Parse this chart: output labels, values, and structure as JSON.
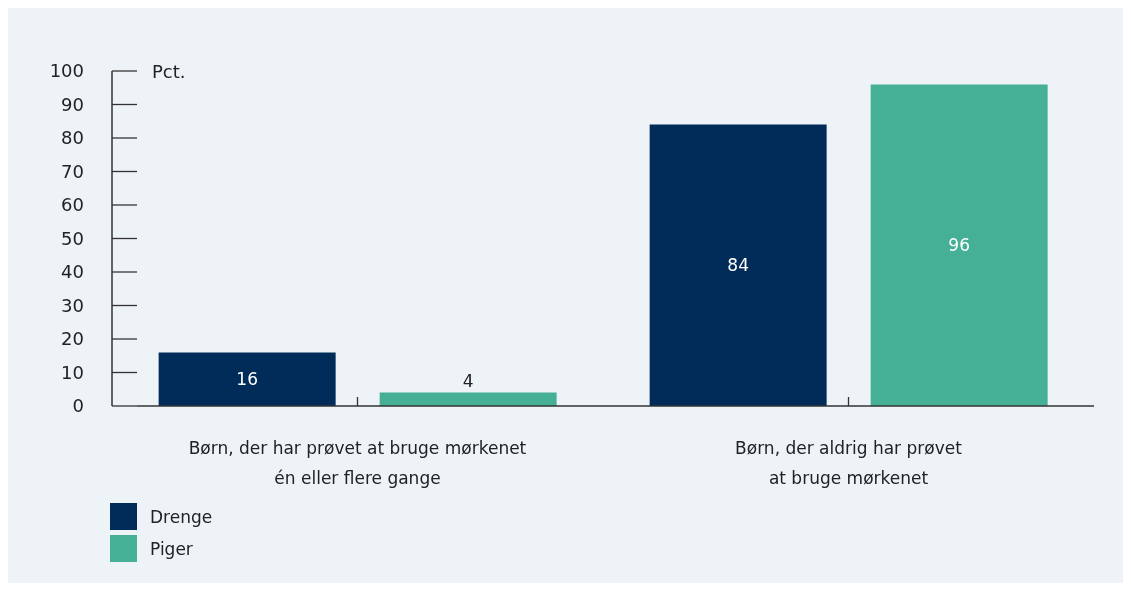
{
  "chart_data": {
    "type": "bar",
    "categories": [
      "Børn, der har prøvet at bruge mørkenet\nén eller flere gange",
      "Børn, der aldrig har prøvet\nat bruge mørkenet"
    ],
    "series": [
      {
        "name": "Drenge",
        "color": "#012c5a",
        "values": [
          16,
          84
        ]
      },
      {
        "name": "Piger",
        "color": "#46b096",
        "values": [
          4,
          96
        ]
      }
    ],
    "ylabel": "Pct.",
    "ylim": [
      0,
      100
    ],
    "yticks": [
      0,
      10,
      20,
      30,
      40,
      50,
      60,
      70,
      80,
      90,
      100
    ],
    "data_labels": true,
    "legend": "bottom left"
  }
}
